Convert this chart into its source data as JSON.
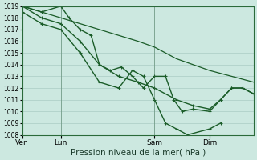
{
  "bg_color": "#cce8e0",
  "grid_color": "#aaccc4",
  "line_color": "#1a5c28",
  "marker_color": "#1a5c28",
  "xlabel": "Pression niveau de la mer( hPa )",
  "xlabel_fontsize": 7.5,
  "ylim": [
    1008,
    1019
  ],
  "ytick_step": 1,
  "yticks": [
    1008,
    1009,
    1010,
    1011,
    1012,
    1013,
    1014,
    1015,
    1016,
    1017,
    1018,
    1019
  ],
  "xtick_labels": [
    "Ven",
    "Lun",
    "Sam",
    "Dim"
  ],
  "xtick_positions": [
    0,
    14,
    48,
    68
  ],
  "xmax": 84,
  "series": [
    {
      "x": [
        0,
        14,
        28,
        42,
        48,
        56,
        68,
        84
      ],
      "y": [
        1019,
        1018.0,
        1017.0,
        1016.0,
        1015.5,
        1014.5,
        1013.5,
        1012.5
      ],
      "style": "-",
      "lw": 0.9,
      "has_markers": false
    },
    {
      "x": [
        0,
        7,
        14,
        17,
        21,
        25,
        28,
        32,
        36,
        40,
        44,
        48,
        52,
        55,
        58,
        62,
        68,
        72,
        76,
        80,
        84
      ],
      "y": [
        1019,
        1018.5,
        1019,
        1018,
        1017,
        1016.5,
        1014,
        1013.5,
        1013.8,
        1013,
        1012,
        1013,
        1013,
        1011,
        1010,
        1010.2,
        1010,
        1011,
        1012,
        1012,
        1011.5
      ],
      "style": "-",
      "lw": 1.0,
      "has_markers": true
    },
    {
      "x": [
        0,
        7,
        14,
        21,
        28,
        35,
        40,
        44,
        48,
        52,
        56,
        60,
        68,
        72
      ],
      "y": [
        1018.5,
        1017.5,
        1017,
        1015,
        1012.5,
        1012,
        1013.5,
        1013,
        1011,
        1009,
        1008.5,
        1008,
        1008.5,
        1009
      ],
      "style": "-",
      "lw": 1.0,
      "has_markers": true
    },
    {
      "x": [
        0,
        7,
        14,
        21,
        28,
        35,
        42,
        48,
        56,
        62,
        68,
        72,
        76,
        80,
        84
      ],
      "y": [
        1019,
        1018,
        1017.5,
        1016,
        1014,
        1013,
        1012.5,
        1012,
        1011,
        1010.5,
        1010.2,
        1011,
        1012,
        1012,
        1011.5
      ],
      "style": "-",
      "lw": 1.0,
      "has_markers": true
    }
  ]
}
